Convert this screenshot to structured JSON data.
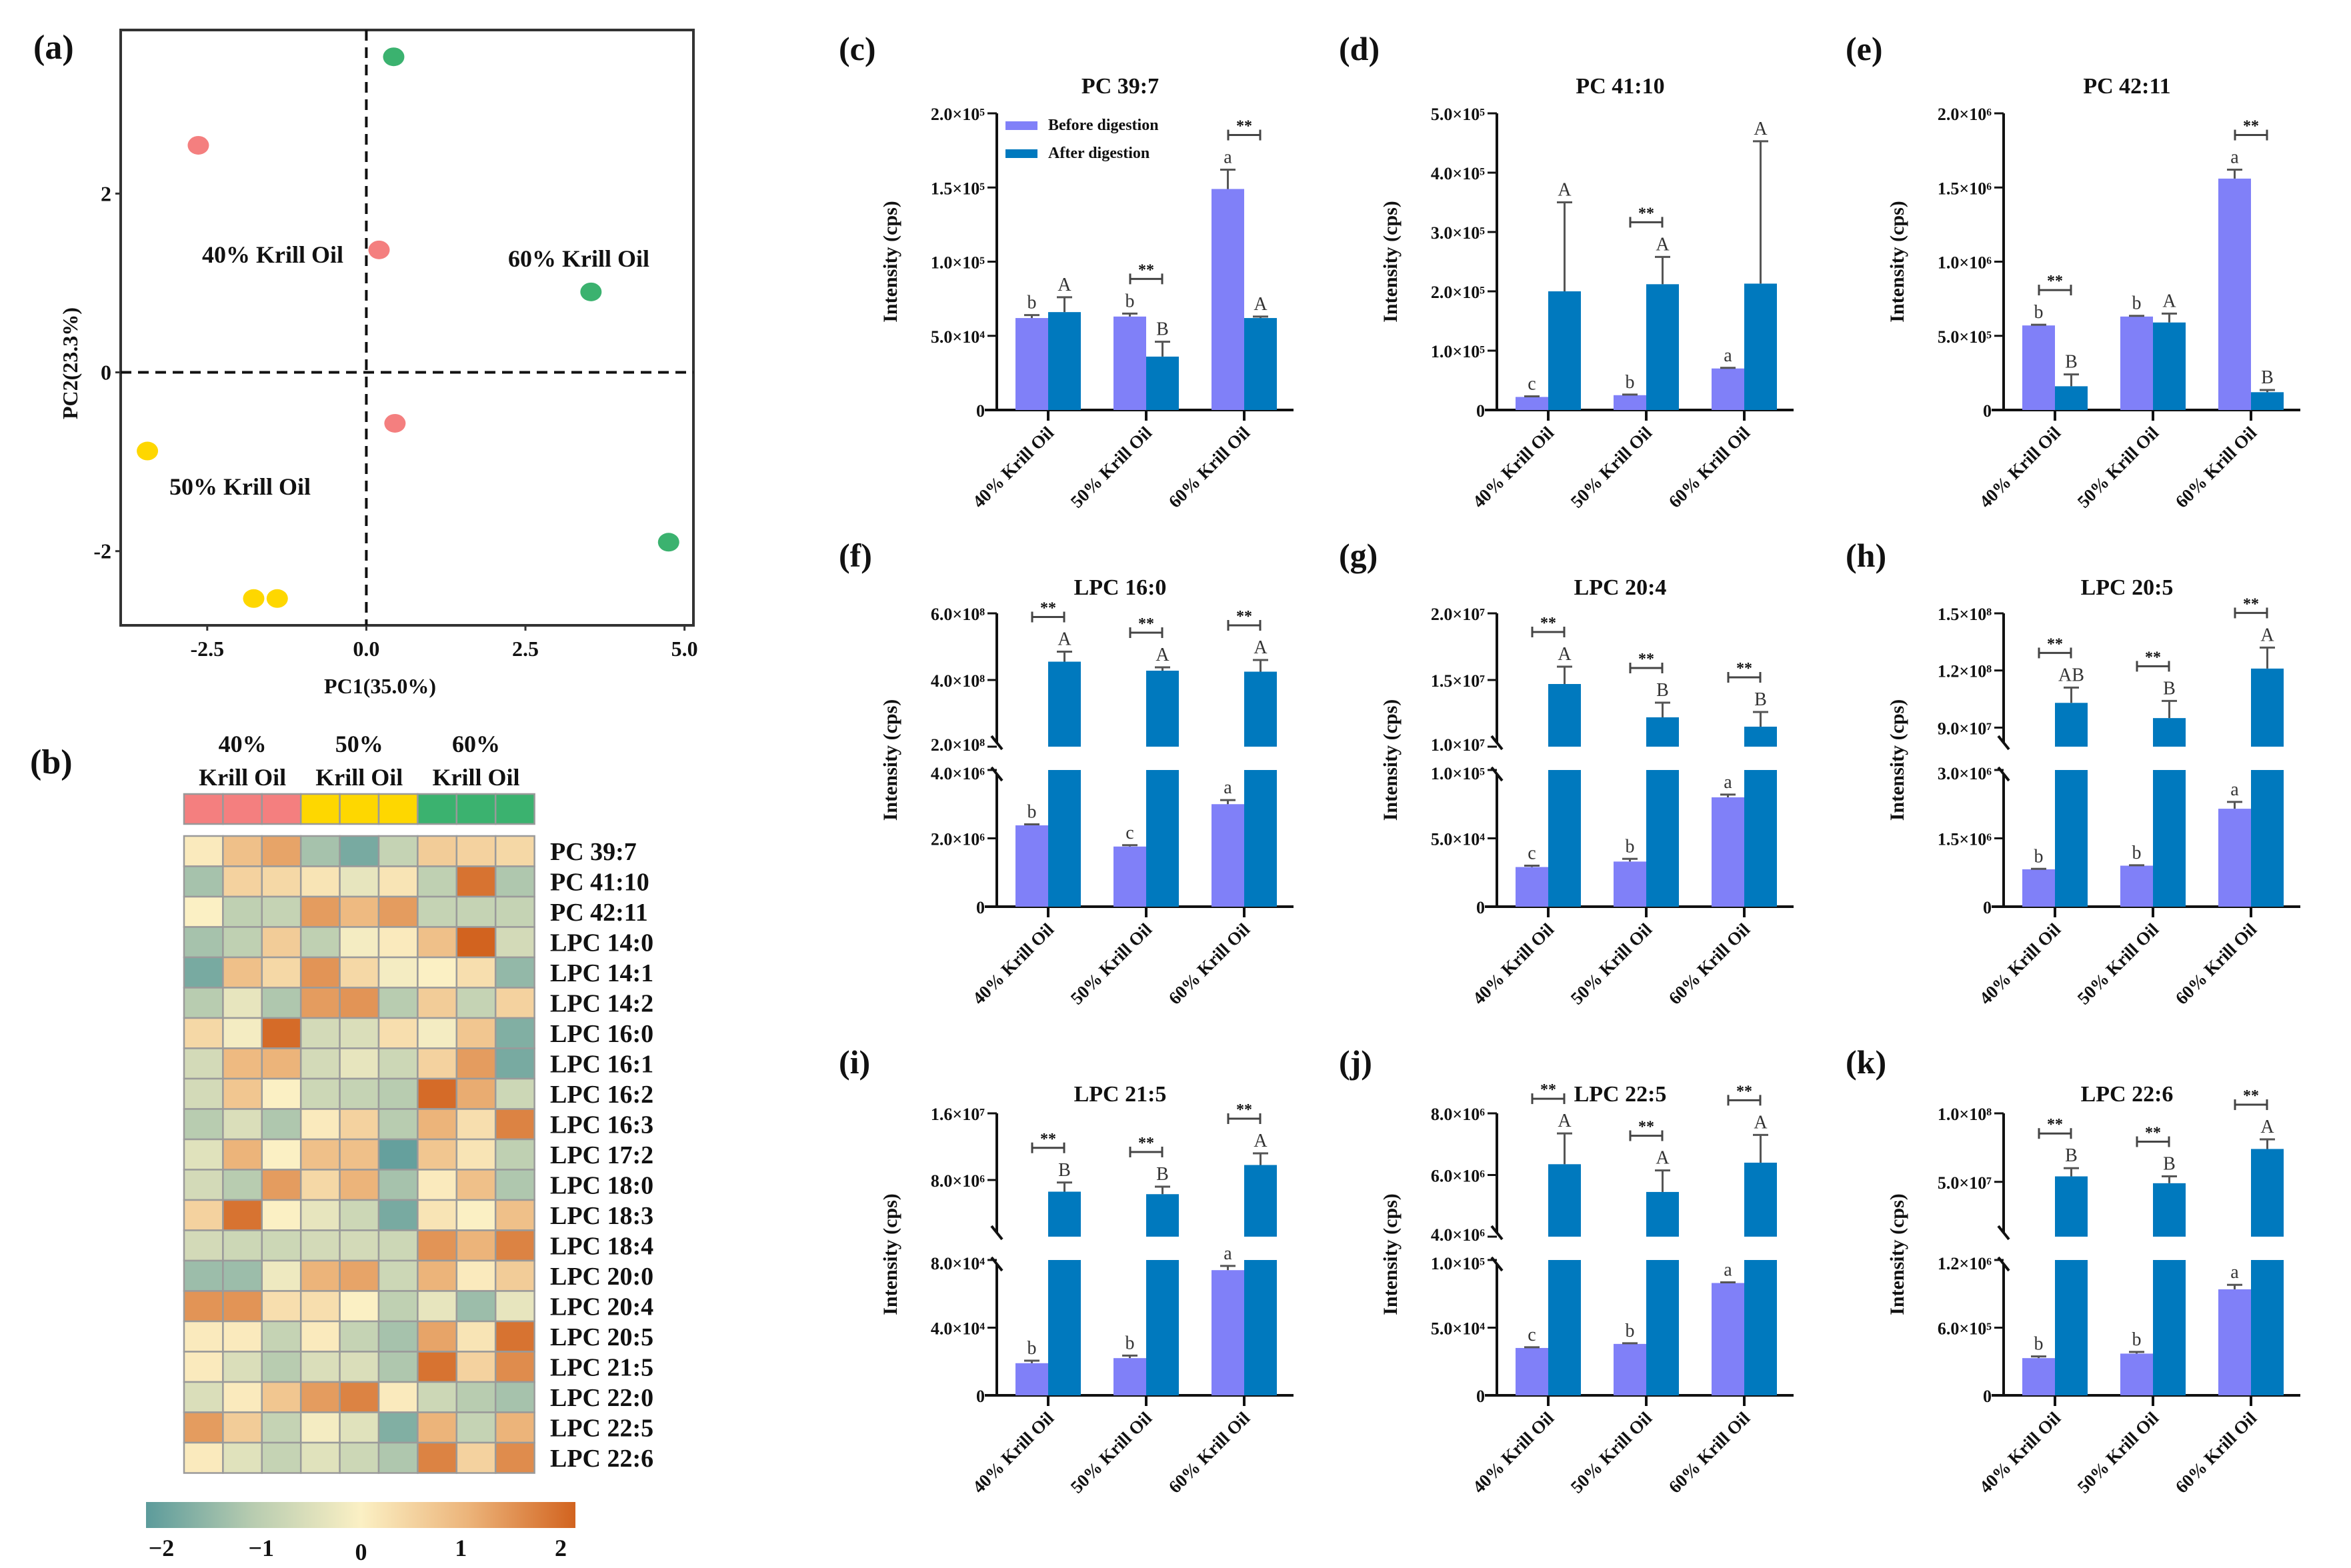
{
  "colors": {
    "before": "#8080f8",
    "after": "#0079be",
    "group_40": "#f47f7f",
    "group_50": "#fed700",
    "group_60": "#3bb26f",
    "heat_scale": [
      "#5c9b9b",
      "#b8ccb0",
      "#fbf0c4",
      "#ecb47a",
      "#d2631f"
    ]
  },
  "chart_data": [
    {
      "panel": "(a)",
      "type": "scatter",
      "xlabel": "PC1(35.0%)",
      "ylabel": "PC2(23.3%)",
      "xlim": [
        -3.86,
        5.14
      ],
      "ylim": [
        -2.83,
        3.83
      ],
      "xticks": [
        -2.5,
        0.0,
        2.5,
        5.0
      ],
      "xtick_labels": [
        "-2.5",
        "0.0",
        "2.5",
        "5.0"
      ],
      "yticks": [
        -2,
        0,
        2
      ],
      "ytick_labels": [
        "-2",
        "0",
        "2"
      ],
      "series": [
        {
          "name": "40% Krill Oil",
          "color": "group_40",
          "points": [
            [
              -2.64,
              2.54
            ],
            [
              0.2,
              1.37
            ],
            [
              0.45,
              -0.57
            ]
          ]
        },
        {
          "name": "50% Krill Oil",
          "color": "group_50",
          "points": [
            [
              -3.44,
              -0.88
            ],
            [
              -1.77,
              -2.53
            ],
            [
              -1.4,
              -2.53
            ]
          ]
        },
        {
          "name": "60% Krill Oil",
          "color": "group_60",
          "points": [
            [
              0.43,
              3.53
            ],
            [
              3.53,
              0.9
            ],
            [
              4.75,
              -1.9
            ]
          ]
        }
      ],
      "annotations": [
        "40% Krill Oil",
        "50% Krill Oil",
        "60% Krill Oil"
      ]
    },
    {
      "panel": "(b)",
      "type": "heatmap",
      "groups": [
        {
          "line1": "40%",
          "line2": "Krill Oil",
          "color": "group_40"
        },
        {
          "line1": "50%",
          "line2": "Krill Oil",
          "color": "group_50"
        },
        {
          "line1": "60%",
          "line2": "Krill Oil",
          "color": "group_60"
        }
      ],
      "rows": [
        {
          "label": "PC 39:7",
          "values": [
            0.1,
            0.8,
            1.2,
            -1.2,
            -1.7,
            -0.8,
            0.6,
            0.5,
            0.4
          ]
        },
        {
          "label": "PC 41:10",
          "values": [
            -1.2,
            0.5,
            0.4,
            0.2,
            -0.3,
            0.2,
            -0.9,
            1.8,
            -1.1
          ]
        },
        {
          "label": "PC 42:11",
          "values": [
            0.0,
            -0.9,
            -0.8,
            1.3,
            0.9,
            1.3,
            -0.8,
            -0.8,
            -0.8
          ]
        },
        {
          "label": "LPC 14:0",
          "values": [
            -1.2,
            -0.9,
            0.6,
            -0.9,
            -0.1,
            0.1,
            0.8,
            2.0,
            -0.6
          ]
        },
        {
          "label": "LPC 14:1",
          "values": [
            -1.7,
            0.8,
            0.4,
            1.4,
            0.4,
            -0.1,
            0.0,
            0.3,
            -1.4
          ]
        },
        {
          "label": "LPC 14:2",
          "values": [
            -1.0,
            -0.3,
            -1.1,
            1.3,
            1.4,
            -1.0,
            0.6,
            -0.8,
            0.5
          ]
        },
        {
          "label": "LPC 16:0",
          "values": [
            0.4,
            -0.1,
            1.9,
            -0.6,
            -0.5,
            0.3,
            -0.1,
            0.7,
            -1.6
          ]
        },
        {
          "label": "LPC 16:1",
          "values": [
            -0.6,
            0.9,
            1.0,
            -0.6,
            -0.3,
            -0.7,
            0.5,
            1.3,
            -1.7
          ]
        },
        {
          "label": "LPC 16:2",
          "values": [
            -0.6,
            0.7,
            0.0,
            -0.7,
            -0.8,
            -1.0,
            1.9,
            1.1,
            -0.7
          ]
        },
        {
          "label": "LPC 16:3",
          "values": [
            -1.0,
            -0.5,
            -1.1,
            0.1,
            0.5,
            -1.0,
            1.0,
            0.3,
            1.6
          ]
        },
        {
          "label": "LPC 17:2",
          "values": [
            -0.4,
            1.0,
            0.0,
            0.8,
            0.8,
            -1.9,
            0.7,
            0.2,
            -0.9
          ]
        },
        {
          "label": "LPC 18:0",
          "values": [
            -0.6,
            -1.0,
            1.3,
            0.4,
            1.0,
            -1.2,
            0.1,
            0.8,
            -1.1
          ]
        },
        {
          "label": "LPC 18:3",
          "values": [
            0.5,
            1.8,
            0.0,
            -0.3,
            -0.7,
            -1.7,
            0.2,
            0.0,
            0.8
          ]
        },
        {
          "label": "LPC 18:4",
          "values": [
            -0.6,
            -0.7,
            -0.7,
            -0.6,
            -0.6,
            -0.7,
            1.4,
            1.0,
            1.6
          ]
        },
        {
          "label": "LPC 20:0",
          "values": [
            -1.3,
            -1.3,
            -0.2,
            1.0,
            1.2,
            -0.7,
            1.0,
            0.1,
            0.6
          ]
        },
        {
          "label": "LPC 20:4",
          "values": [
            1.4,
            1.4,
            0.3,
            0.3,
            0.0,
            -0.9,
            -0.3,
            -1.3,
            -0.3
          ]
        },
        {
          "label": "LPC 20:5",
          "values": [
            0.1,
            0.1,
            -0.8,
            0.1,
            -0.8,
            -1.2,
            1.2,
            0.2,
            1.8
          ]
        },
        {
          "label": "LPC 21:5",
          "values": [
            0.1,
            -0.5,
            -1.0,
            -0.5,
            -0.5,
            -1.1,
            1.8,
            0.5,
            1.5
          ]
        },
        {
          "label": "LPC 22:0",
          "values": [
            -0.5,
            0.1,
            0.7,
            1.3,
            1.6,
            0.1,
            -0.7,
            -1.0,
            -1.2
          ]
        },
        {
          "label": "LPC 22:5",
          "values": [
            1.3,
            0.6,
            -0.8,
            -0.1,
            -0.4,
            -1.6,
            1.0,
            -0.8,
            1.0
          ]
        },
        {
          "label": "LPC 22:6",
          "values": [
            0.1,
            -0.4,
            -0.8,
            -0.4,
            -0.7,
            -1.1,
            1.6,
            0.5,
            1.5
          ]
        }
      ],
      "colorbar": {
        "range": [
          -2,
          2
        ],
        "ticks": [
          -2,
          -1,
          0,
          1,
          2
        ],
        "tick_labels": [
          "−2",
          "−1",
          "0",
          "1",
          "2"
        ]
      }
    }
  ],
  "bar_panels": {
    "categories": [
      "40% Krill Oil",
      "50% Krill Oil",
      "60% Krill Oil"
    ],
    "ylabel": "Intensity (cps)",
    "legend": [
      "Before digestion",
      "After digestion"
    ],
    "sig_label": "**",
    "panels": [
      {
        "panel": "(c)",
        "type": "bar",
        "title": "PC 39:7",
        "broken": false,
        "ylim": [
          0,
          200000
        ],
        "ticks": [
          0,
          50000,
          100000,
          150000,
          200000
        ],
        "tick_labels": [
          "0",
          "5.0×10⁴",
          "1.0×10⁵",
          "1.5×10⁵",
          "2.0×10⁵"
        ],
        "before": [
          62000,
          63000,
          149000
        ],
        "before_err": [
          2000,
          2000,
          13000
        ],
        "after": [
          66000,
          36000,
          62000
        ],
        "after_err": [
          10000,
          10000,
          1000
        ],
        "before_letters": [
          "b",
          "b",
          "a"
        ],
        "after_letters": [
          "A",
          "B",
          "A"
        ],
        "significant": [
          false,
          true,
          true
        ],
        "legend_shown": true
      },
      {
        "panel": "(d)",
        "type": "bar",
        "title": "PC 41:10",
        "broken": false,
        "ylim": [
          0,
          500000
        ],
        "ticks": [
          0,
          100000,
          200000,
          300000,
          400000,
          500000
        ],
        "tick_labels": [
          "0",
          "1.0×10⁵",
          "2.0×10⁵",
          "3.0×10⁵",
          "4.0×10⁵",
          "5.0×10⁵"
        ],
        "before": [
          22000,
          25000,
          70000
        ],
        "before_err": [
          1000,
          1000,
          1000
        ],
        "after": [
          200000,
          212000,
          213000
        ],
        "after_err": [
          150000,
          46000,
          240000
        ],
        "before_letters": [
          "c",
          "b",
          "a"
        ],
        "after_letters": [
          "A",
          "A",
          "A"
        ],
        "significant": [
          false,
          true,
          false
        ]
      },
      {
        "panel": "(e)",
        "type": "bar",
        "title": "PC 42:11",
        "broken": false,
        "ylim": [
          0,
          2000000
        ],
        "ticks": [
          0,
          500000,
          1000000,
          1500000,
          2000000
        ],
        "tick_labels": [
          "0",
          "5.0×10⁵",
          "1.0×10⁶",
          "1.5×10⁶",
          "2.0×10⁶"
        ],
        "before": [
          570000,
          630000,
          1560000
        ],
        "before_err": [
          5000,
          5000,
          60000
        ],
        "after": [
          160000,
          590000,
          120000
        ],
        "after_err": [
          80000,
          60000,
          15000
        ],
        "before_letters": [
          "b",
          "b",
          "a"
        ],
        "after_letters": [
          "B",
          "A",
          "B"
        ],
        "significant": [
          true,
          false,
          true
        ]
      },
      {
        "panel": "(f)",
        "type": "bar",
        "title": "LPC 16:0",
        "broken": true,
        "lower_ylim": [
          0,
          4000000
        ],
        "lower_ticks": [
          0,
          2000000,
          4000000
        ],
        "lower_tick_labels": [
          "0",
          "2.0×10⁶",
          "4.0×10⁶"
        ],
        "upper_ylim": [
          200000000,
          600000000
        ],
        "upper_ticks": [
          200000000,
          400000000,
          600000000
        ],
        "upper_tick_labels": [
          "2.0×10⁸",
          "4.0×10⁸",
          "6.0×10⁸"
        ],
        "before": [
          2380000,
          1760000,
          3000000
        ],
        "before_err": [
          30000,
          40000,
          120000
        ],
        "after": [
          455000000,
          428000000,
          425000000
        ],
        "after_err": [
          30000000,
          10000000,
          35000000
        ],
        "before_letters": [
          "b",
          "c",
          "a"
        ],
        "after_letters": [
          "A",
          "A",
          "A"
        ],
        "significant": [
          true,
          true,
          true
        ]
      },
      {
        "panel": "(g)",
        "type": "bar",
        "title": "LPC 20:4",
        "broken": true,
        "lower_ylim": [
          0,
          100000
        ],
        "lower_ticks": [
          0,
          50000,
          100000
        ],
        "lower_tick_labels": [
          "0",
          "5.0×10⁴",
          "1.0×10⁵"
        ],
        "upper_ylim": [
          10000000,
          20000000
        ],
        "upper_ticks": [
          10000000,
          15000000,
          20000000
        ],
        "upper_tick_labels": [
          "1.0×10⁷",
          "1.5×10⁷",
          "2.0×10⁷"
        ],
        "before": [
          29000,
          33000,
          80000
        ],
        "before_err": [
          1000,
          2000,
          2000
        ],
        "after": [
          14700000,
          12200000,
          11500000
        ],
        "after_err": [
          1300000,
          1100000,
          1100000
        ],
        "before_letters": [
          "c",
          "b",
          "a"
        ],
        "after_letters": [
          "A",
          "B",
          "B"
        ],
        "significant": [
          true,
          true,
          true
        ]
      },
      {
        "panel": "(h)",
        "type": "bar",
        "title": "LPC 20:5",
        "broken": true,
        "lower_ylim": [
          0,
          3000000
        ],
        "lower_ticks": [
          0,
          1500000,
          3000000
        ],
        "lower_tick_labels": [
          "0",
          "1.5×10⁶",
          "3.0×10⁶"
        ],
        "upper_ylim": [
          80000000,
          150000000
        ],
        "upper_ticks": [
          90000000,
          120000000,
          150000000
        ],
        "upper_tick_labels": [
          "9.0×10⁷",
          "1.2×10⁸",
          "1.5×10⁸"
        ],
        "before": [
          820000,
          900000,
          2150000
        ],
        "before_err": [
          10000,
          10000,
          150000
        ],
        "after": [
          103000000,
          95000000,
          121000000
        ],
        "after_err": [
          8000000,
          9000000,
          11000000
        ],
        "before_letters": [
          "b",
          "b",
          "a"
        ],
        "after_letters": [
          "AB",
          "B",
          "A"
        ],
        "significant": [
          true,
          true,
          true
        ]
      },
      {
        "panel": "(i)",
        "type": "bar",
        "title": "LPC 21:5",
        "broken": true,
        "lower_ylim": [
          0,
          80000
        ],
        "lower_ticks": [
          0,
          40000,
          80000
        ],
        "lower_tick_labels": [
          "0",
          "4.0×10⁴",
          "8.0×10⁴"
        ],
        "upper_ylim": [
          1200000,
          16000000
        ],
        "upper_ticks": [
          8000000,
          16000000
        ],
        "upper_tick_labels": [
          "8.0×10⁶",
          "1.6×10⁷"
        ],
        "before": [
          19000,
          22000,
          74000
        ],
        "before_err": [
          1500,
          1500,
          2500
        ],
        "after": [
          6600000,
          6300000,
          9800000
        ],
        "after_err": [
          1100000,
          900000,
          1400000
        ],
        "before_letters": [
          "b",
          "b",
          "a"
        ],
        "after_letters": [
          "B",
          "B",
          "A"
        ],
        "significant": [
          true,
          true,
          true
        ]
      },
      {
        "panel": "(j)",
        "type": "bar",
        "title": "LPC 22:5",
        "broken": true,
        "lower_ylim": [
          0,
          100000
        ],
        "lower_ticks": [
          0,
          50000,
          100000
        ],
        "lower_tick_labels": [
          "0",
          "5.0×10⁴",
          "1.0×10⁵"
        ],
        "upper_ylim": [
          4000000,
          8000000
        ],
        "upper_ticks": [
          4000000,
          6000000,
          8000000
        ],
        "upper_tick_labels": [
          "4.0×10⁶",
          "6.0×10⁶",
          "8.0×10⁶"
        ],
        "before": [
          35000,
          38000,
          83000
        ],
        "before_err": [
          500,
          500,
          500
        ],
        "after": [
          6350000,
          5450000,
          6400000
        ],
        "after_err": [
          1000000,
          700000,
          900000
        ],
        "before_letters": [
          "c",
          "b",
          "a"
        ],
        "after_letters": [
          "A",
          "A",
          "A"
        ],
        "significant": [
          true,
          true,
          true
        ]
      },
      {
        "panel": "(k)",
        "type": "bar",
        "title": "LPC 22:6",
        "broken": true,
        "lower_ylim": [
          0,
          1200000
        ],
        "lower_ticks": [
          0,
          600000,
          1200000
        ],
        "lower_tick_labels": [
          "0",
          "6.0×10⁵",
          "1.2×10⁶"
        ],
        "upper_ylim": [
          10000000,
          100000000
        ],
        "upper_ticks": [
          50000000,
          100000000
        ],
        "upper_tick_labels": [
          "5.0×10⁷",
          "1.0×10⁸"
        ],
        "before": [
          330000,
          370000,
          940000
        ],
        "before_err": [
          15000,
          15000,
          40000
        ],
        "after": [
          54000000,
          49000000,
          74000000
        ],
        "after_err": [
          6000000,
          5000000,
          7000000
        ],
        "before_letters": [
          "b",
          "b",
          "a"
        ],
        "after_letters": [
          "B",
          "B",
          "A"
        ],
        "significant": [
          true,
          true,
          true
        ]
      }
    ]
  }
}
